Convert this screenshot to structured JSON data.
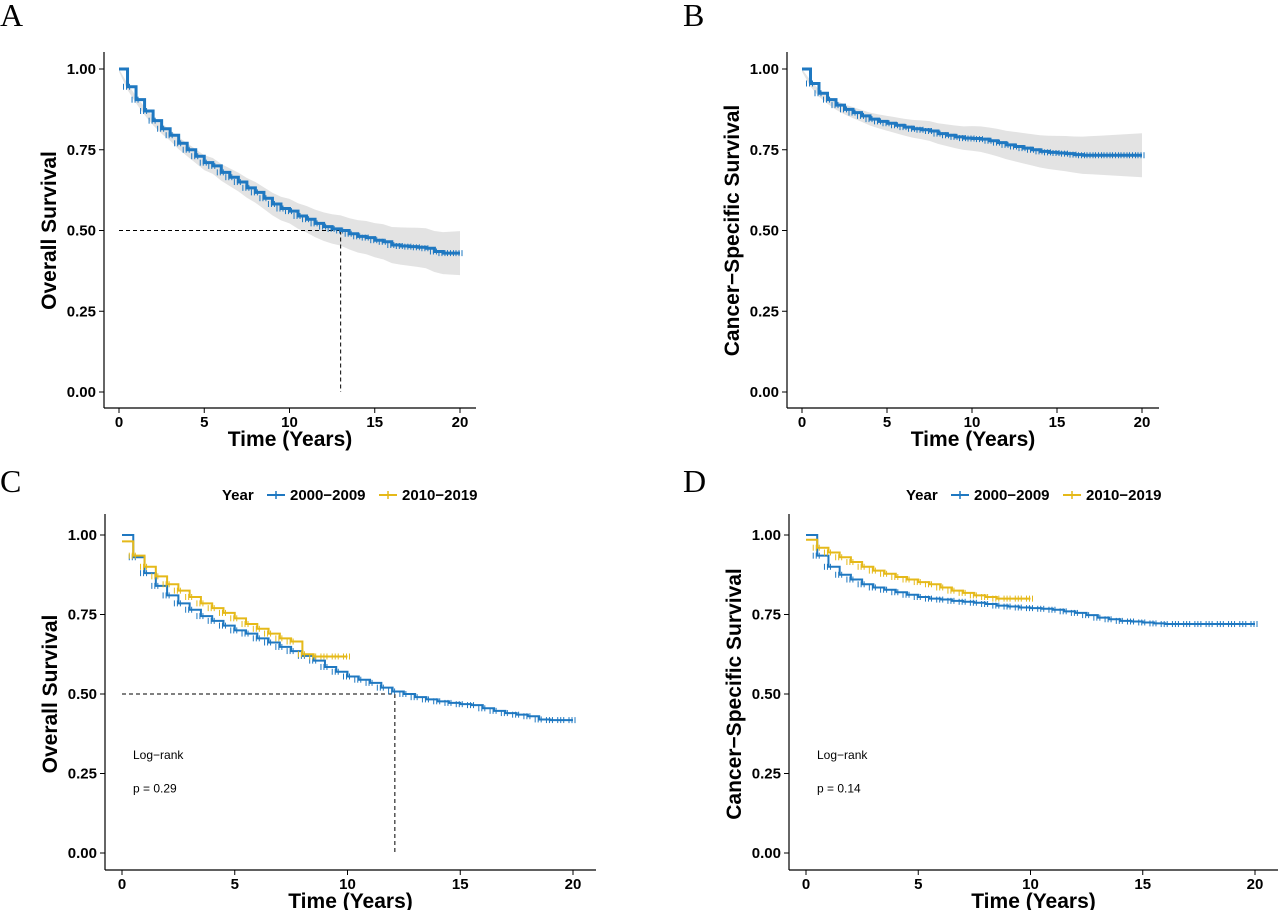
{
  "chart_data": [
    {
      "panel": "A",
      "type": "line",
      "xlabel": "Time (Years)",
      "ylabel": "Overall Survival",
      "xlim": [
        0,
        20
      ],
      "ylim": [
        0,
        1
      ],
      "xticks": [
        "0",
        "5",
        "10",
        "15",
        "20"
      ],
      "yticks": [
        "0.00",
        "0.25",
        "0.50",
        "0.75",
        "1.00"
      ],
      "confidence_band": true,
      "median_line": {
        "x": 13.0,
        "y": 0.5
      },
      "series": [
        {
          "color": "#1f78c1",
          "x": [
            0,
            0.5,
            1,
            1.5,
            2,
            2.5,
            3,
            3.5,
            4,
            4.5,
            5,
            5.5,
            6,
            6.5,
            7,
            7.5,
            8,
            8.5,
            9,
            9.5,
            10,
            10.5,
            11,
            11.5,
            12,
            12.5,
            13,
            13.5,
            14,
            14.5,
            15,
            15.5,
            16,
            16.5,
            17,
            17.5,
            18,
            18.5,
            19,
            19.5,
            20
          ],
          "y": [
            1.0,
            0.945,
            0.905,
            0.87,
            0.84,
            0.815,
            0.795,
            0.77,
            0.75,
            0.73,
            0.71,
            0.7,
            0.68,
            0.665,
            0.65,
            0.632,
            0.618,
            0.6,
            0.582,
            0.568,
            0.56,
            0.545,
            0.535,
            0.522,
            0.512,
            0.505,
            0.5,
            0.49,
            0.482,
            0.478,
            0.47,
            0.465,
            0.455,
            0.452,
            0.45,
            0.448,
            0.445,
            0.435,
            0.43,
            0.43,
            0.43
          ]
        }
      ],
      "legend": null
    },
    {
      "panel": "B",
      "type": "line",
      "xlabel": "Time (Years)",
      "ylabel": "Cancer−Specific Survival",
      "xlim": [
        0,
        20
      ],
      "ylim": [
        0,
        1
      ],
      "xticks": [
        "0",
        "5",
        "10",
        "15",
        "20"
      ],
      "yticks": [
        "0.00",
        "0.25",
        "0.50",
        "0.75",
        "1.00"
      ],
      "confidence_band": true,
      "series": [
        {
          "color": "#1f78c1",
          "x": [
            0,
            0.5,
            1,
            1.5,
            2,
            2.5,
            3,
            3.5,
            4,
            4.5,
            5,
            5.5,
            6,
            6.5,
            7,
            7.5,
            8,
            8.5,
            9,
            9.5,
            10,
            10.5,
            11,
            11.5,
            12,
            12.5,
            13,
            13.5,
            14,
            14.5,
            15,
            15.5,
            16,
            16.5,
            17,
            17.5,
            18,
            18.5,
            19,
            19.5,
            20
          ],
          "y": [
            1.0,
            0.955,
            0.925,
            0.905,
            0.888,
            0.875,
            0.865,
            0.855,
            0.845,
            0.838,
            0.832,
            0.826,
            0.82,
            0.815,
            0.812,
            0.808,
            0.8,
            0.795,
            0.79,
            0.786,
            0.785,
            0.783,
            0.778,
            0.772,
            0.765,
            0.76,
            0.755,
            0.75,
            0.745,
            0.742,
            0.74,
            0.738,
            0.735,
            0.733,
            0.733,
            0.733,
            0.733,
            0.733,
            0.733,
            0.733,
            0.733
          ]
        }
      ],
      "legend": null
    },
    {
      "panel": "C",
      "type": "line",
      "xlabel": "Time (Years)",
      "ylabel": "Overall Survival",
      "xlim": [
        0,
        20
      ],
      "ylim": [
        0,
        1
      ],
      "xticks": [
        "0",
        "5",
        "10",
        "15",
        "20"
      ],
      "yticks": [
        "0.00",
        "0.25",
        "0.50",
        "0.75",
        "1.00"
      ],
      "median_line": {
        "x": 12.1,
        "y": 0.5
      },
      "legend": {
        "title": "Year",
        "position": "top"
      },
      "annotations": [
        "Log−rank",
        "p = 0.29"
      ],
      "series": [
        {
          "name": "2000−2009",
          "color": "#1f78c1",
          "x": [
            0,
            0.5,
            1,
            1.5,
            2,
            2.5,
            3,
            3.5,
            4,
            4.5,
            5,
            5.5,
            6,
            6.5,
            7,
            7.5,
            8,
            8.5,
            9,
            9.5,
            10,
            10.5,
            11,
            11.5,
            12,
            12.5,
            13,
            13.5,
            14,
            14.5,
            15,
            15.5,
            16,
            16.5,
            17,
            17.5,
            18,
            18.5,
            19,
            19.5,
            20
          ],
          "y": [
            1.0,
            0.93,
            0.88,
            0.84,
            0.81,
            0.785,
            0.765,
            0.745,
            0.73,
            0.715,
            0.7,
            0.69,
            0.675,
            0.662,
            0.648,
            0.635,
            0.62,
            0.605,
            0.585,
            0.57,
            0.555,
            0.545,
            0.535,
            0.52,
            0.508,
            0.5,
            0.49,
            0.483,
            0.477,
            0.472,
            0.468,
            0.465,
            0.455,
            0.447,
            0.44,
            0.435,
            0.43,
            0.42,
            0.418,
            0.418,
            0.418
          ]
        },
        {
          "name": "2010−2019",
          "color": "#e5b919",
          "x": [
            0,
            0.5,
            1,
            1.5,
            2,
            2.5,
            3,
            3.5,
            4,
            4.5,
            5,
            5.5,
            6,
            6.5,
            7,
            7.5,
            8,
            8.5,
            9,
            9.5,
            10
          ],
          "y": [
            0.98,
            0.935,
            0.9,
            0.87,
            0.845,
            0.825,
            0.805,
            0.785,
            0.77,
            0.755,
            0.738,
            0.72,
            0.705,
            0.69,
            0.675,
            0.665,
            0.625,
            0.618,
            0.618,
            0.618,
            0.618
          ]
        }
      ]
    },
    {
      "panel": "D",
      "type": "line",
      "xlabel": "Time (Years)",
      "ylabel": "Cancer−Specific Survival",
      "xlim": [
        0,
        20
      ],
      "ylim": [
        0,
        1
      ],
      "xticks": [
        "0",
        "5",
        "10",
        "15",
        "20"
      ],
      "yticks": [
        "0.00",
        "0.25",
        "0.50",
        "0.75",
        "1.00"
      ],
      "legend": {
        "title": "Year",
        "position": "top"
      },
      "annotations": [
        "Log−rank",
        "p = 0.14"
      ],
      "series": [
        {
          "name": "2000−2009",
          "color": "#1f78c1",
          "x": [
            0,
            0.5,
            1,
            1.5,
            2,
            2.5,
            3,
            3.5,
            4,
            4.5,
            5,
            5.5,
            6,
            6.5,
            7,
            7.5,
            8,
            8.5,
            9,
            9.5,
            10,
            10.5,
            11,
            11.5,
            12,
            12.5,
            13,
            13.5,
            14,
            14.5,
            15,
            15.5,
            16,
            16.5,
            17,
            17.5,
            18,
            18.5,
            19,
            19.5,
            20
          ],
          "y": [
            1.0,
            0.935,
            0.9,
            0.875,
            0.86,
            0.845,
            0.835,
            0.828,
            0.82,
            0.812,
            0.805,
            0.8,
            0.797,
            0.793,
            0.79,
            0.787,
            0.783,
            0.778,
            0.775,
            0.772,
            0.77,
            0.768,
            0.765,
            0.76,
            0.755,
            0.748,
            0.74,
            0.735,
            0.73,
            0.728,
            0.725,
            0.722,
            0.72,
            0.72,
            0.72,
            0.72,
            0.72,
            0.72,
            0.72,
            0.72,
            0.72
          ]
        },
        {
          "name": "2010−2019",
          "color": "#e5b919",
          "x": [
            0,
            0.5,
            1,
            1.5,
            2,
            2.5,
            3,
            3.5,
            4,
            4.5,
            5,
            5.5,
            6,
            6.5,
            7,
            7.5,
            8,
            8.5,
            9,
            9.5,
            10
          ],
          "y": [
            0.985,
            0.96,
            0.945,
            0.93,
            0.915,
            0.9,
            0.888,
            0.878,
            0.868,
            0.86,
            0.852,
            0.845,
            0.835,
            0.825,
            0.818,
            0.81,
            0.805,
            0.8,
            0.8,
            0.8,
            0.8
          ]
        }
      ]
    }
  ],
  "colors": {
    "blue": "#1f78c1",
    "gold": "#e5b919",
    "band": "#d9d9d9"
  }
}
